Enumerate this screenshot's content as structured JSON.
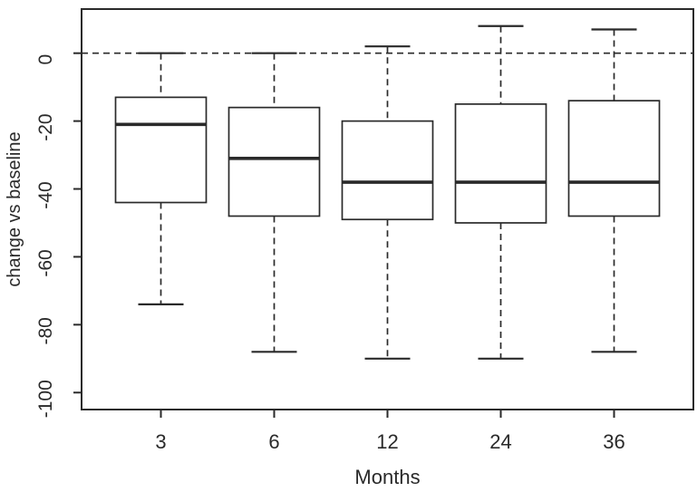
{
  "figure": {
    "kind": "R-style box-and-whisker plot",
    "background_color": "#ffffff",
    "line_color": "#2a2a2a"
  },
  "chart_data": {
    "type": "boxplot",
    "title": "",
    "xlabel": "Months",
    "ylabel": "change vs baseline",
    "categories": [
      "3",
      "6",
      "12",
      "24",
      "36"
    ],
    "ytick_labels": [
      "0",
      "-20",
      "-40",
      "-60",
      "-80",
      "-100"
    ],
    "yticks": [
      0,
      -20,
      -40,
      -60,
      -80,
      -100
    ],
    "ylim": [
      -105,
      13
    ],
    "grid": false,
    "legend": "none",
    "reference_line": {
      "y": 0,
      "style": "dashed"
    },
    "whisker_style": "dashed",
    "series": [
      {
        "category": "3",
        "whisker_low": -74,
        "q1": -44,
        "median": -21,
        "q3": -13,
        "whisker_high": 0
      },
      {
        "category": "6",
        "whisker_low": -88,
        "q1": -48,
        "median": -31,
        "q3": -16,
        "whisker_high": 0
      },
      {
        "category": "12",
        "whisker_low": -90,
        "q1": -49,
        "median": -38,
        "q3": -20,
        "whisker_high": 2
      },
      {
        "category": "24",
        "whisker_low": -90,
        "q1": -50,
        "median": -38,
        "q3": -15,
        "whisker_high": 8
      },
      {
        "category": "36",
        "whisker_low": -88,
        "q1": -48,
        "median": -38,
        "q3": -14,
        "whisker_high": 7
      }
    ],
    "colors": {
      "box_fill": "#ffffff",
      "stroke": "#2a2a2a"
    }
  }
}
